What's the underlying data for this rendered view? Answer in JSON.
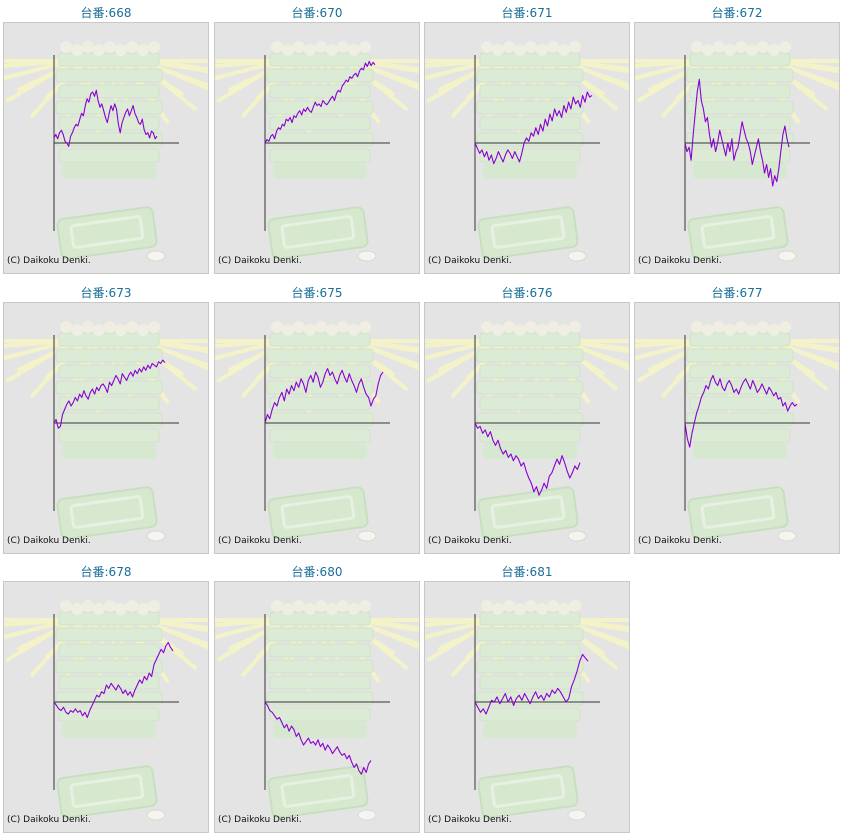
{
  "copyright": "(C) Daikoku Denki.",
  "colors": {
    "title": "#1a6f9a",
    "line": "#8a00d4",
    "axis": "#333333",
    "frame_bg": "#e4e4e4"
  },
  "graphs": [
    {
      "title": "台番:668",
      "chart_data": {
        "type": "line",
        "y": [
          0.06,
          0.1,
          0.05,
          0.12,
          0.15,
          0.1,
          0.02,
          0.0,
          -0.04,
          0.08,
          0.12,
          0.18,
          0.22,
          0.2,
          0.28,
          0.35,
          0.32,
          0.44,
          0.52,
          0.48,
          0.58,
          0.6,
          0.55,
          0.62,
          0.5,
          0.42,
          0.46,
          0.38,
          0.3,
          0.24,
          0.35,
          0.44,
          0.38,
          0.46,
          0.4,
          0.22,
          0.12,
          0.24,
          0.3,
          0.36,
          0.4,
          0.32,
          0.38,
          0.44,
          0.35,
          0.3,
          0.24,
          0.22,
          0.28,
          0.16,
          0.1,
          0.12,
          0.06,
          0.14,
          0.12,
          0.05,
          0.08
        ]
      }
    },
    {
      "title": "台番:670",
      "chart_data": {
        "type": "line",
        "y": [
          0.0,
          0.04,
          0.02,
          0.08,
          0.1,
          0.05,
          0.14,
          0.18,
          0.16,
          0.22,
          0.2,
          0.28,
          0.26,
          0.3,
          0.24,
          0.32,
          0.3,
          0.35,
          0.38,
          0.33,
          0.4,
          0.37,
          0.42,
          0.38,
          0.36,
          0.42,
          0.48,
          0.44,
          0.46,
          0.43,
          0.5,
          0.47,
          0.45,
          0.48,
          0.52,
          0.55,
          0.5,
          0.58,
          0.62,
          0.6,
          0.67,
          0.7,
          0.74,
          0.72,
          0.78,
          0.76,
          0.8,
          0.82,
          0.78,
          0.85,
          0.88,
          0.86,
          0.94,
          0.9,
          0.96,
          0.91,
          0.95,
          0.92
        ]
      }
    },
    {
      "title": "台番:671",
      "chart_data": {
        "type": "line",
        "y": [
          0.0,
          -0.06,
          -0.12,
          -0.08,
          -0.16,
          -0.1,
          -0.2,
          -0.14,
          -0.24,
          -0.18,
          -0.1,
          -0.16,
          -0.22,
          -0.14,
          -0.08,
          -0.12,
          -0.18,
          -0.1,
          -0.16,
          -0.22,
          -0.12,
          0.0,
          0.06,
          0.02,
          0.12,
          0.08,
          0.18,
          0.1,
          0.22,
          0.14,
          0.28,
          0.2,
          0.34,
          0.26,
          0.4,
          0.32,
          0.38,
          0.3,
          0.44,
          0.36,
          0.48,
          0.4,
          0.54,
          0.46,
          0.5,
          0.42,
          0.56,
          0.48,
          0.6,
          0.54,
          0.56
        ]
      }
    },
    {
      "title": "台番:672",
      "chart_data": {
        "type": "line",
        "y": [
          0.0,
          -0.1,
          -0.05,
          -0.2,
          0.1,
          0.35,
          0.6,
          0.75,
          0.5,
          0.4,
          0.25,
          0.3,
          0.1,
          -0.05,
          0.05,
          -0.1,
          0.0,
          0.15,
          0.05,
          -0.05,
          -0.15,
          0.0,
          -0.1,
          0.05,
          -0.2,
          -0.1,
          -0.05,
          0.1,
          0.25,
          0.15,
          0.05,
          0.0,
          -0.1,
          -0.25,
          -0.15,
          -0.05,
          0.05,
          -0.1,
          -0.2,
          -0.35,
          -0.25,
          -0.4,
          -0.3,
          -0.5,
          -0.38,
          -0.45,
          -0.3,
          -0.1,
          0.1,
          0.2,
          0.05,
          -0.05
        ]
      }
    },
    {
      "title": "台番:673",
      "chart_data": {
        "type": "line",
        "y": [
          0.0,
          0.04,
          -0.06,
          -0.04,
          0.1,
          0.16,
          0.22,
          0.26,
          0.2,
          0.24,
          0.3,
          0.26,
          0.34,
          0.3,
          0.38,
          0.32,
          0.28,
          0.36,
          0.4,
          0.34,
          0.42,
          0.38,
          0.44,
          0.46,
          0.42,
          0.36,
          0.48,
          0.44,
          0.5,
          0.56,
          0.52,
          0.46,
          0.58,
          0.54,
          0.5,
          0.56,
          0.6,
          0.55,
          0.62,
          0.58,
          0.64,
          0.6,
          0.66,
          0.62,
          0.68,
          0.64,
          0.7,
          0.68,
          0.66,
          0.72,
          0.7,
          0.74,
          0.71
        ]
      }
    },
    {
      "title": "台番:675",
      "chart_data": {
        "type": "line",
        "y": [
          0.0,
          0.1,
          0.05,
          0.16,
          0.24,
          0.2,
          0.3,
          0.36,
          0.26,
          0.4,
          0.34,
          0.44,
          0.38,
          0.48,
          0.42,
          0.52,
          0.46,
          0.36,
          0.5,
          0.56,
          0.48,
          0.6,
          0.54,
          0.42,
          0.48,
          0.58,
          0.64,
          0.56,
          0.6,
          0.52,
          0.46,
          0.56,
          0.62,
          0.54,
          0.48,
          0.58,
          0.5,
          0.44,
          0.36,
          0.46,
          0.52,
          0.42,
          0.34,
          0.3,
          0.2,
          0.28,
          0.32,
          0.46,
          0.56,
          0.6
        ]
      }
    },
    {
      "title": "台番:676",
      "chart_data": {
        "type": "line",
        "y": [
          0.0,
          -0.06,
          -0.04,
          -0.12,
          -0.08,
          -0.16,
          -0.1,
          -0.2,
          -0.26,
          -0.2,
          -0.3,
          -0.36,
          -0.32,
          -0.4,
          -0.36,
          -0.44,
          -0.38,
          -0.42,
          -0.5,
          -0.46,
          -0.56,
          -0.64,
          -0.7,
          -0.8,
          -0.74,
          -0.84,
          -0.78,
          -0.7,
          -0.76,
          -0.62,
          -0.58,
          -0.5,
          -0.42,
          -0.48,
          -0.38,
          -0.46,
          -0.56,
          -0.64,
          -0.58,
          -0.5,
          -0.54,
          -0.46
        ]
      }
    },
    {
      "title": "台番:677",
      "chart_data": {
        "type": "line",
        "y": [
          0.0,
          -0.18,
          -0.28,
          -0.12,
          0.0,
          0.12,
          0.2,
          0.3,
          0.36,
          0.44,
          0.4,
          0.5,
          0.56,
          0.48,
          0.44,
          0.52,
          0.42,
          0.38,
          0.46,
          0.5,
          0.44,
          0.36,
          0.4,
          0.34,
          0.42,
          0.48,
          0.52,
          0.46,
          0.4,
          0.5,
          0.44,
          0.36,
          0.4,
          0.46,
          0.4,
          0.34,
          0.42,
          0.38,
          0.32,
          0.36,
          0.28,
          0.3,
          0.2,
          0.24,
          0.14,
          0.2,
          0.24,
          0.2,
          0.22
        ]
      }
    },
    {
      "title": "台番:678",
      "chart_data": {
        "type": "line",
        "y": [
          0.0,
          -0.04,
          -0.08,
          -0.1,
          -0.06,
          -0.12,
          -0.14,
          -0.1,
          -0.12,
          -0.08,
          -0.12,
          -0.1,
          -0.16,
          -0.12,
          -0.18,
          -0.1,
          -0.04,
          0.02,
          0.08,
          0.06,
          0.12,
          0.1,
          0.2,
          0.16,
          0.22,
          0.18,
          0.14,
          0.2,
          0.16,
          0.1,
          0.14,
          0.08,
          0.12,
          0.06,
          0.14,
          0.2,
          0.26,
          0.22,
          0.3,
          0.26,
          0.34,
          0.3,
          0.44,
          0.5,
          0.56,
          0.62,
          0.58,
          0.66,
          0.7,
          0.64,
          0.6
        ]
      }
    },
    {
      "title": "台番:680",
      "chart_data": {
        "type": "line",
        "y": [
          0.0,
          -0.04,
          -0.1,
          -0.12,
          -0.16,
          -0.2,
          -0.18,
          -0.24,
          -0.3,
          -0.26,
          -0.34,
          -0.28,
          -0.32,
          -0.4,
          -0.36,
          -0.44,
          -0.5,
          -0.46,
          -0.42,
          -0.48,
          -0.46,
          -0.5,
          -0.44,
          -0.52,
          -0.48,
          -0.56,
          -0.5,
          -0.54,
          -0.6,
          -0.56,
          -0.52,
          -0.58,
          -0.62,
          -0.6,
          -0.66,
          -0.62,
          -0.7,
          -0.76,
          -0.72,
          -0.8,
          -0.84,
          -0.76,
          -0.82,
          -0.72,
          -0.68
        ]
      }
    },
    {
      "title": "台番:681",
      "chart_data": {
        "type": "line",
        "y": [
          0.0,
          -0.06,
          -0.12,
          -0.08,
          -0.14,
          -0.06,
          0.02,
          0.0,
          0.06,
          -0.02,
          0.04,
          0.1,
          0.0,
          0.06,
          -0.04,
          0.04,
          0.08,
          0.02,
          0.1,
          0.04,
          -0.02,
          0.06,
          0.12,
          0.04,
          0.08,
          0.02,
          0.1,
          0.06,
          0.14,
          0.1,
          0.16,
          0.12,
          0.06,
          0.0,
          0.04,
          0.18,
          0.26,
          0.36,
          0.48,
          0.56,
          0.52,
          0.48
        ]
      }
    }
  ]
}
